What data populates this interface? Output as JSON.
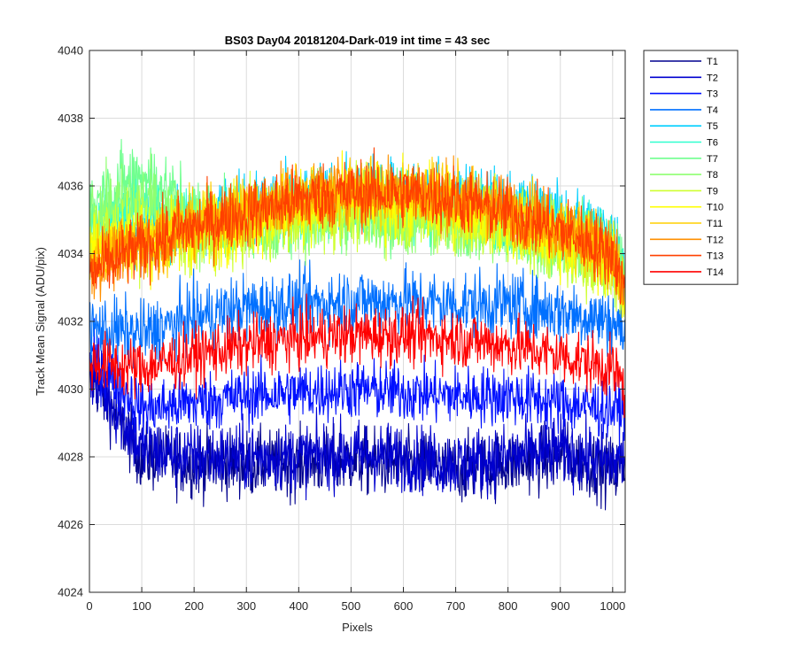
{
  "chart_data": {
    "type": "line",
    "title": "BS03 Day04 20181204-Dark-019 int time = 43 sec",
    "xlabel": "Pixels",
    "ylabel": "Track Mean Signal (ADU/pix)",
    "xlim": [
      0,
      1024
    ],
    "ylim": [
      4024,
      4040
    ],
    "xticks": [
      0,
      100,
      200,
      300,
      400,
      500,
      600,
      700,
      800,
      900,
      1000
    ],
    "yticks": [
      4024,
      4026,
      4028,
      4030,
      4032,
      4034,
      4036,
      4038,
      4040
    ],
    "grid": true,
    "legend_position": "outside-top-right",
    "x_sample_points": [
      0,
      100,
      200,
      300,
      400,
      500,
      600,
      700,
      800,
      900,
      1000,
      1024
    ],
    "series": [
      {
        "name": "T1",
        "color": "#00008f",
        "mean": [
          4030.5,
          4028.0,
          4027.8,
          4027.8,
          4027.8,
          4027.9,
          4027.8,
          4027.6,
          4027.8,
          4028.0,
          4027.6,
          4027.8
        ],
        "noise": 0.9
      },
      {
        "name": "T2",
        "color": "#0000cf",
        "mean": [
          4030.6,
          4028.2,
          4028.0,
          4028.0,
          4028.0,
          4028.1,
          4028.0,
          4027.8,
          4028.0,
          4028.2,
          4027.8,
          4028.0
        ],
        "noise": 0.9
      },
      {
        "name": "T3",
        "color": "#0010ff",
        "mean": [
          4031.0,
          4029.4,
          4029.6,
          4029.8,
          4029.9,
          4030.0,
          4029.9,
          4029.8,
          4029.8,
          4029.6,
          4029.4,
          4029.4
        ],
        "noise": 0.8
      },
      {
        "name": "T4",
        "color": "#0070ff",
        "mean": [
          4031.8,
          4031.6,
          4032.1,
          4032.4,
          4032.5,
          4032.6,
          4032.6,
          4032.5,
          4032.5,
          4032.3,
          4032.0,
          4031.6
        ],
        "noise": 0.9
      },
      {
        "name": "T5",
        "color": "#00cfff",
        "mean": [
          4034.8,
          4034.6,
          4035.0,
          4035.4,
          4035.6,
          4035.8,
          4035.8,
          4035.7,
          4035.5,
          4035.1,
          4034.6,
          4033.8
        ],
        "noise": 0.9
      },
      {
        "name": "T6",
        "color": "#30ffcf",
        "mean": [
          4035.0,
          4035.4,
          4034.8,
          4035.0,
          4035.2,
          4035.3,
          4035.3,
          4035.2,
          4035.0,
          4034.7,
          4034.2,
          4033.4
        ],
        "noise": 0.9
      },
      {
        "name": "T7",
        "color": "#70ff8f",
        "mean": [
          4035.4,
          4036.4,
          4035.2,
          4035.0,
          4035.2,
          4035.3,
          4035.2,
          4035.1,
          4034.9,
          4034.6,
          4034.0,
          4033.2
        ],
        "noise": 1.0
      },
      {
        "name": "T8",
        "color": "#8fff70",
        "mean": [
          4035.2,
          4035.6,
          4034.6,
          4034.8,
          4035.0,
          4035.1,
          4035.0,
          4034.9,
          4034.7,
          4034.3,
          4033.7,
          4032.9
        ],
        "noise": 1.0
      },
      {
        "name": "T9",
        "color": "#cfff30",
        "mean": [
          4034.6,
          4034.6,
          4034.4,
          4034.8,
          4035.1,
          4035.3,
          4035.2,
          4035.0,
          4034.7,
          4034.2,
          4033.6,
          4032.7
        ],
        "noise": 1.0
      },
      {
        "name": "T10",
        "color": "#ffff00",
        "mean": [
          4034.2,
          4034.4,
          4034.6,
          4035.0,
          4035.4,
          4035.6,
          4035.6,
          4035.4,
          4035.0,
          4034.5,
          4033.8,
          4032.8
        ],
        "noise": 1.0
      },
      {
        "name": "T11",
        "color": "#ffcf00",
        "mean": [
          4033.8,
          4034.4,
          4034.8,
          4035.2,
          4035.6,
          4035.8,
          4035.8,
          4035.6,
          4035.2,
          4034.7,
          4034.0,
          4033.0
        ],
        "noise": 0.9
      },
      {
        "name": "T12",
        "color": "#ff8f00",
        "mean": [
          4033.6,
          4034.3,
          4034.8,
          4035.3,
          4035.7,
          4035.9,
          4035.9,
          4035.7,
          4035.3,
          4034.8,
          4034.1,
          4033.0
        ],
        "noise": 0.9
      },
      {
        "name": "T13",
        "color": "#ff4000",
        "mean": [
          4033.4,
          4034.2,
          4034.8,
          4035.2,
          4035.6,
          4035.8,
          4035.8,
          4035.6,
          4035.2,
          4034.7,
          4034.0,
          4032.8
        ],
        "noise": 0.9
      },
      {
        "name": "T14",
        "color": "#ff0000",
        "mean": [
          4030.8,
          4030.6,
          4031.0,
          4031.3,
          4031.5,
          4031.6,
          4031.6,
          4031.5,
          4031.3,
          4031.0,
          4030.6,
          4030.0
        ],
        "noise": 0.8
      }
    ]
  }
}
